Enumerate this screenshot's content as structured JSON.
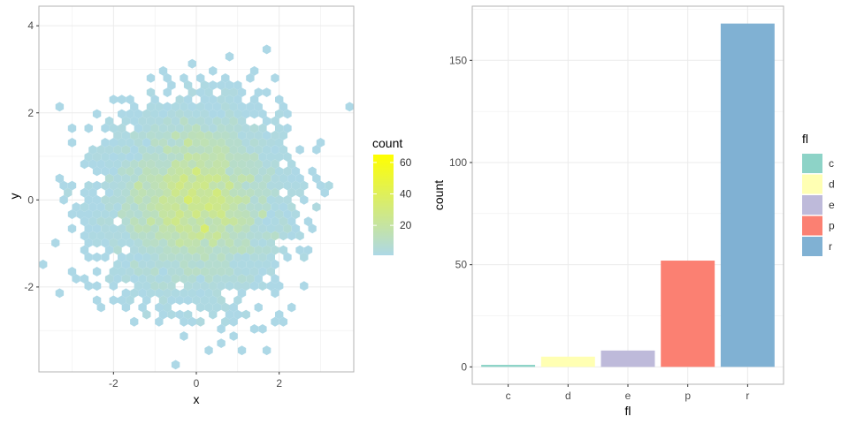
{
  "chart_data": [
    {
      "type": "hexbin",
      "xlabel": "x",
      "ylabel": "y",
      "xlim": [
        -3.8,
        3.8
      ],
      "ylim": [
        -3.95,
        4.45
      ],
      "xticks": [
        -2,
        0,
        2
      ],
      "yticks": [
        -2,
        0,
        2,
        4
      ],
      "grid": true,
      "distribution": {
        "center": [
          0,
          0
        ],
        "sd": [
          1,
          1
        ],
        "n_points": 5000
      },
      "bin_width_x": 0.2,
      "legend": {
        "title": "count",
        "position": "right",
        "breaks": [
          20,
          40,
          60
        ],
        "range": [
          1,
          65
        ],
        "color_low": "#add8e6",
        "color_high": "#ffff00"
      }
    },
    {
      "type": "bar",
      "xlabel": "fl",
      "ylabel": "count",
      "categories": [
        "c",
        "d",
        "e",
        "p",
        "r"
      ],
      "values": [
        1,
        5,
        8,
        52,
        168
      ],
      "ylim": [
        -8.5,
        176.5
      ],
      "yticks": [
        0,
        50,
        100,
        150
      ],
      "grid": true,
      "colors": [
        "#8dd3c7",
        "#ffffb3",
        "#bebada",
        "#fb8072",
        "#80b1d3"
      ],
      "legend": {
        "title": "fl",
        "position": "right",
        "labels": [
          "c",
          "d",
          "e",
          "p",
          "r"
        ]
      }
    }
  ]
}
